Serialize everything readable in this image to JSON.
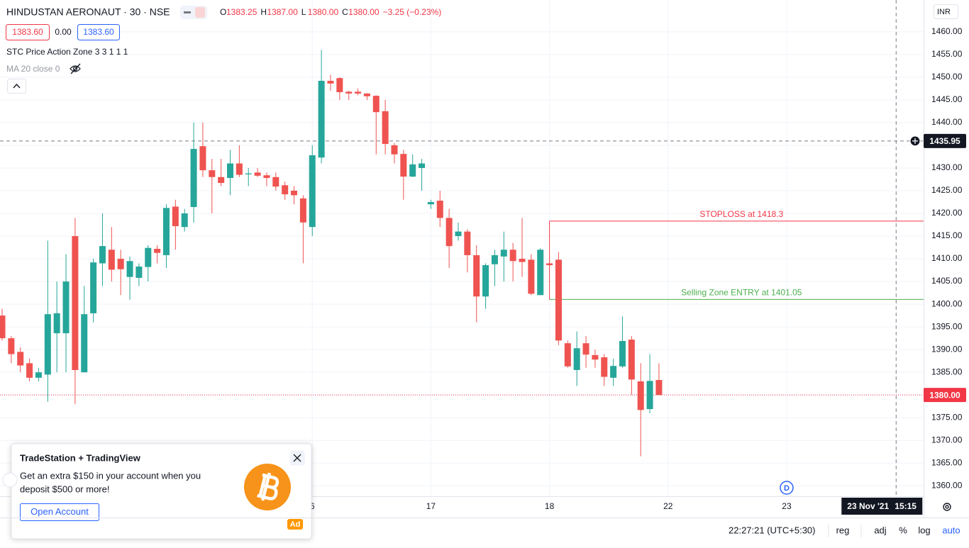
{
  "header": {
    "symbol": "HINDUSTAN AERONAUT · 30 · NSE",
    "ohlc": [
      {
        "key": "O",
        "value": "1383.25"
      },
      {
        "key": "H",
        "value": "1387.00"
      },
      {
        "key": "L",
        "value": "1380.00"
      },
      {
        "key": "C",
        "value": "1380.00"
      }
    ],
    "change": "−3.25 (−0.23%)",
    "bid": "1383.60",
    "spread": "0.00",
    "ask": "1383.60",
    "indicators": [
      "STC Price Action Zone 3 3 1 1 1",
      "MA 20 close 0"
    ],
    "currency": "INR"
  },
  "chart_data": {
    "type": "candlestick",
    "up_color": "#26a69a",
    "down_color": "#ef5350",
    "ohlc": [
      [
        1397.5,
        1399,
        1392,
        1392.5
      ],
      [
        1392.5,
        1393,
        1387,
        1389
      ],
      [
        1389.5,
        1390.5,
        1385,
        1386.5
      ],
      [
        1387,
        1388,
        1383,
        1383.8
      ],
      [
        1383.8,
        1386,
        1383,
        1385
      ],
      [
        1384.5,
        1414,
        1378.5,
        1397.8
      ],
      [
        1393.6,
        1405,
        1385,
        1398
      ],
      [
        1393.6,
        1411,
        1385,
        1405
      ],
      [
        1415,
        1419,
        1378,
        1385.5
      ],
      [
        1385,
        1404,
        1385,
        1397.8
      ],
      [
        1398,
        1410,
        1396,
        1409.2
      ],
      [
        1409,
        1420,
        1404,
        1412.8
      ],
      [
        1412,
        1417,
        1405,
        1407.6
      ],
      [
        1410,
        1412,
        1402,
        1407.7
      ],
      [
        1406,
        1410.5,
        1401,
        1409.5
      ],
      [
        1405.8,
        1409,
        1404,
        1408.3
      ],
      [
        1408.2,
        1413,
        1405,
        1412.4
      ],
      [
        1412.2,
        1413,
        1409,
        1411.3
      ],
      [
        1410.8,
        1422,
        1408,
        1421.2
      ],
      [
        1421.5,
        1423,
        1412,
        1417.2
      ],
      [
        1417,
        1421,
        1416,
        1420
      ],
      [
        1421.4,
        1440,
        1418,
        1434.2
      ],
      [
        1434.8,
        1440,
        1428,
        1429.5
      ],
      [
        1429.5,
        1432,
        1420,
        1428
      ],
      [
        1428,
        1432,
        1426,
        1426.7
      ],
      [
        1427.8,
        1434,
        1424,
        1431
      ],
      [
        1431,
        1435,
        1428,
        1428.5
      ],
      [
        1428.6,
        1430,
        1426,
        1428.8
      ],
      [
        1429,
        1430,
        1428,
        1428.3
      ],
      [
        1428.4,
        1429,
        1426,
        1427.8
      ],
      [
        1428,
        1429,
        1425,
        1425.9
      ],
      [
        1426.2,
        1427,
        1423,
        1424.2
      ],
      [
        1425,
        1426,
        1422,
        1424
      ],
      [
        1423.3,
        1424,
        1409,
        1418
      ],
      [
        1417,
        1435,
        1415,
        1432.8
      ],
      [
        1432.3,
        1456,
        1431,
        1449.2
      ],
      [
        1449.2,
        1450.5,
        1447,
        1448.6
      ],
      [
        1449.8,
        1450,
        1445,
        1446.7
      ],
      [
        1446.8,
        1447,
        1445,
        1446.4
      ],
      [
        1446.8,
        1447.5,
        1446,
        1446.4
      ],
      [
        1446.4,
        1446.5,
        1445,
        1445.8
      ],
      [
        1445.9,
        1446,
        1433,
        1442.3
      ],
      [
        1442.5,
        1445,
        1433,
        1435.3
      ],
      [
        1435,
        1435.5,
        1431,
        1433
      ],
      [
        1433.1,
        1434,
        1423,
        1428.1
      ],
      [
        1428.1,
        1433,
        1428,
        1430.8
      ],
      [
        1430,
        1432,
        1425,
        1431
      ],
      [
        1422,
        1423,
        1421,
        1422.5
      ],
      [
        1422.8,
        1425,
        1417,
        1419
      ],
      [
        1419,
        1421,
        1408,
        1412.8
      ],
      [
        1415,
        1418,
        1414,
        1416
      ],
      [
        1416,
        1416.5,
        1407,
        1410.8
      ],
      [
        1410.8,
        1413,
        1396,
        1401.7
      ],
      [
        1401.7,
        1409,
        1399,
        1408.6
      ],
      [
        1408.8,
        1412,
        1404,
        1410.8
      ],
      [
        1410.5,
        1416,
        1405,
        1412
      ],
      [
        1412,
        1413.5,
        1405,
        1409.5
      ],
      [
        1410,
        1419,
        1406,
        1409.3
      ],
      [
        1409.8,
        1411,
        1402,
        1402.3
      ],
      [
        1402,
        1412.3,
        1402,
        1412
      ],
      [
        1409,
        1410,
        1408,
        1408.6
      ],
      [
        1409.8,
        1411.5,
        1391,
        1392
      ],
      [
        1391.4,
        1392,
        1386,
        1386.3
      ],
      [
        1385.5,
        1394,
        1382,
        1390.3
      ],
      [
        1391.4,
        1393,
        1386,
        1388.9
      ],
      [
        1388.8,
        1390,
        1386,
        1387.8
      ],
      [
        1388.3,
        1389,
        1382,
        1384
      ],
      [
        1383.8,
        1388,
        1382,
        1386.4
      ],
      [
        1386.3,
        1397.3,
        1386,
        1391.9
      ],
      [
        1392.2,
        1393,
        1380,
        1383.4
      ],
      [
        1383,
        1387,
        1366.5,
        1376.7
      ],
      [
        1376.9,
        1389,
        1376,
        1383.1
      ],
      [
        1383.3,
        1387,
        1380,
        1380
      ]
    ],
    "ylim": [
      1357.7,
      1467
    ],
    "yticks": [
      {
        "value": 1360,
        "label": "1360.00"
      },
      {
        "value": 1365,
        "label": "1365.00"
      },
      {
        "value": 1370,
        "label": "1370.00"
      },
      {
        "value": 1375,
        "label": "1375.00"
      },
      {
        "value": 1380,
        "label": "1380.00"
      },
      {
        "value": 1385,
        "label": "1385.00"
      },
      {
        "value": 1390,
        "label": "1390.00"
      },
      {
        "value": 1395,
        "label": "1395.00"
      },
      {
        "value": 1400,
        "label": "1400.00"
      },
      {
        "value": 1405,
        "label": "1405.00"
      },
      {
        "value": 1410,
        "label": "1410.00"
      },
      {
        "value": 1415,
        "label": "1415.00"
      },
      {
        "value": 1420,
        "label": "1420.00"
      },
      {
        "value": 1425,
        "label": "1425.00"
      },
      {
        "value": 1430,
        "label": "1430.00"
      },
      {
        "value": 1435,
        "label": "1435.00"
      },
      {
        "value": 1440,
        "label": "1440.00"
      },
      {
        "value": 1445,
        "label": "1445.00"
      },
      {
        "value": 1450,
        "label": "1450.00"
      },
      {
        "value": 1455,
        "label": "1455.00"
      },
      {
        "value": 1460,
        "label": "1460.00"
      }
    ],
    "xticks": [
      {
        "value": 34,
        "label": "6"
      },
      {
        "value": 47,
        "label": "17"
      },
      {
        "value": 60,
        "label": "18"
      },
      {
        "value": 73,
        "label": "22"
      },
      {
        "value": 86,
        "label": "23"
      }
    ],
    "grid": true,
    "annotations": [
      {
        "label": "STOPLOSS at 1418.3",
        "value": 1418.3,
        "start": 60,
        "color": "#f23645"
      },
      {
        "label": "Selling Zone ENTRY at 1401.05",
        "value": 1401.05,
        "start": 60,
        "color": "#4caf50"
      }
    ],
    "last_price": {
      "value": 1380,
      "label": "1380.00",
      "color": "#f23645"
    },
    "crosshair": {
      "value": 1435.95,
      "index": 98,
      "date": "23 Nov '21",
      "time": "15:15"
    },
    "event_marker": {
      "index": 86,
      "label": "D"
    }
  },
  "ad": {
    "title": "TradeStation + TradingView",
    "body": [
      "Get an extra $150 in your account when you",
      "deposit $500 or more!"
    ],
    "button": "Open Account",
    "badge": "Ad"
  },
  "footer": {
    "clock": "22:27:21 (UTC+5:30)",
    "options": [
      "reg",
      "adj",
      "%",
      "log",
      "auto"
    ]
  }
}
